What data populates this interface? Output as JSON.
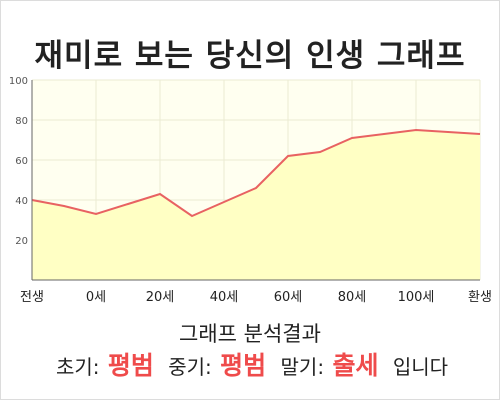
{
  "title": "재미로 보는 당신의 인생 그래프",
  "chart_data": {
    "type": "area",
    "x_labels": [
      "전생",
      "0세",
      "20세",
      "40세",
      "60세",
      "80세",
      "100세",
      "환생"
    ],
    "x": [
      -20,
      0,
      20,
      40,
      60,
      80,
      100,
      120
    ],
    "y_ticks": [
      20,
      40,
      60,
      80,
      100
    ],
    "ylim": [
      0,
      100
    ],
    "xlim": [
      -20,
      120
    ],
    "grid": true,
    "series": [
      {
        "x": [
          -20,
          -10,
          0,
          10,
          20,
          30,
          40,
          50,
          60,
          70,
          80,
          90,
          100,
          110,
          120
        ],
        "values": [
          40,
          37,
          33,
          38,
          43,
          32,
          39,
          46,
          62,
          64,
          71,
          73,
          75,
          74,
          73
        ]
      }
    ],
    "colors": {
      "line": "#e86262",
      "fill": "#ffffc4",
      "plot_bg": "#fffff0",
      "grid": "#ebebd2"
    }
  },
  "analysis": {
    "title": "그래프 분석결과",
    "early_label": "초기:",
    "early_value": "평범",
    "middle_label": "중기:",
    "middle_value": "평범",
    "late_label": "말기:",
    "late_value": "출세",
    "suffix": "입니다"
  }
}
